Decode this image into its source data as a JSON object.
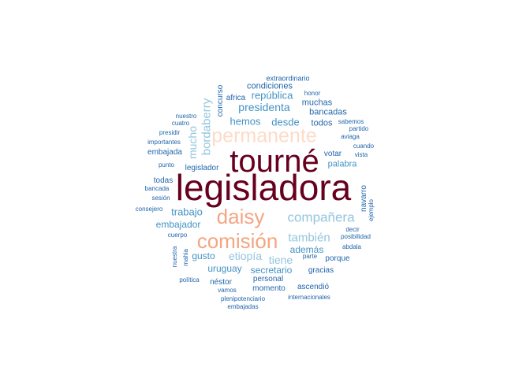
{
  "colors": {
    "dark_red": "#67001f",
    "salmon": "#f4a582",
    "peach": "#fddbc7",
    "sky": "#92c5de",
    "steel": "#4393c3",
    "navy": "#2166ac"
  },
  "words": [
    {
      "text": "legisladora",
      "color": "#67001f"
    },
    {
      "text": "tourné",
      "color": "#67001f"
    },
    {
      "text": "permanente",
      "color": "#fddbc7"
    },
    {
      "text": "comisión",
      "color": "#f4a582"
    },
    {
      "text": "daisy",
      "color": "#f4a582"
    },
    {
      "text": "compañera",
      "color": "#92c5de"
    },
    {
      "text": "también",
      "color": "#92c5de"
    },
    {
      "text": "bordaberry",
      "color": "#92c5de"
    },
    {
      "text": "etiopía",
      "color": "#92c5de"
    },
    {
      "text": "tiene",
      "color": "#92c5de"
    },
    {
      "text": "mucho",
      "color": "#92c5de"
    },
    {
      "text": "presidenta",
      "color": "#4393c3"
    },
    {
      "text": "república",
      "color": "#4393c3"
    },
    {
      "text": "hemos",
      "color": "#4393c3"
    },
    {
      "text": "desde",
      "color": "#4393c3"
    },
    {
      "text": "trabajo",
      "color": "#4393c3"
    },
    {
      "text": "embajador",
      "color": "#4393c3"
    },
    {
      "text": "gusto",
      "color": "#4393c3"
    },
    {
      "text": "uruguay",
      "color": "#4393c3"
    },
    {
      "text": "secretario",
      "color": "#4393c3"
    },
    {
      "text": "además",
      "color": "#4393c3"
    },
    {
      "text": "palabra",
      "color": "#4393c3"
    },
    {
      "text": "condiciones",
      "color": "#2166ac"
    },
    {
      "text": "muchas",
      "color": "#2166ac"
    },
    {
      "text": "bancadas",
      "color": "#2166ac"
    },
    {
      "text": "todos",
      "color": "#2166ac"
    },
    {
      "text": "votar",
      "color": "#2166ac"
    },
    {
      "text": "embajada",
      "color": "#2166ac"
    },
    {
      "text": "legislador",
      "color": "#2166ac"
    },
    {
      "text": "todas",
      "color": "#2166ac"
    },
    {
      "text": "navarro",
      "color": "#2166ac"
    },
    {
      "text": "porque",
      "color": "#2166ac"
    },
    {
      "text": "gracias",
      "color": "#2166ac"
    },
    {
      "text": "personal",
      "color": "#2166ac"
    },
    {
      "text": "momento",
      "color": "#2166ac"
    },
    {
      "text": "ascendió",
      "color": "#2166ac"
    },
    {
      "text": "néstor",
      "color": "#2166ac"
    },
    {
      "text": "concurso",
      "color": "#2166ac"
    },
    {
      "text": "africa",
      "color": "#2166ac"
    },
    {
      "text": "extraordinario",
      "color": "#2166ac"
    },
    {
      "text": "honor",
      "color": "#2166ac"
    },
    {
      "text": "partido",
      "color": "#2166ac"
    },
    {
      "text": "aviaga",
      "color": "#2166ac"
    },
    {
      "text": "sabemos",
      "color": "#2166ac"
    },
    {
      "text": "cuando",
      "color": "#2166ac"
    },
    {
      "text": "vista",
      "color": "#2166ac"
    },
    {
      "text": "nuestro",
      "color": "#2166ac"
    },
    {
      "text": "cuatro",
      "color": "#2166ac"
    },
    {
      "text": "presidir",
      "color": "#2166ac"
    },
    {
      "text": "importantes",
      "color": "#2166ac"
    },
    {
      "text": "punto",
      "color": "#2166ac"
    },
    {
      "text": "bancada",
      "color": "#2166ac"
    },
    {
      "text": "sesión",
      "color": "#2166ac"
    },
    {
      "text": "consejero",
      "color": "#2166ac"
    },
    {
      "text": "ejemplo",
      "color": "#2166ac"
    },
    {
      "text": "decir",
      "color": "#2166ac"
    },
    {
      "text": "posibilidad",
      "color": "#2166ac"
    },
    {
      "text": "cuerpo",
      "color": "#2166ac"
    },
    {
      "text": "abdala",
      "color": "#2166ac"
    },
    {
      "text": "nuestra",
      "color": "#2166ac"
    },
    {
      "text": "mahia",
      "color": "#2166ac"
    },
    {
      "text": "parte",
      "color": "#2166ac"
    },
    {
      "text": "política",
      "color": "#2166ac"
    },
    {
      "text": "vamos",
      "color": "#2166ac"
    },
    {
      "text": "plenipotenciario",
      "color": "#2166ac"
    },
    {
      "text": "internacionales",
      "color": "#2166ac"
    },
    {
      "text": "embajadas",
      "color": "#2166ac"
    }
  ]
}
